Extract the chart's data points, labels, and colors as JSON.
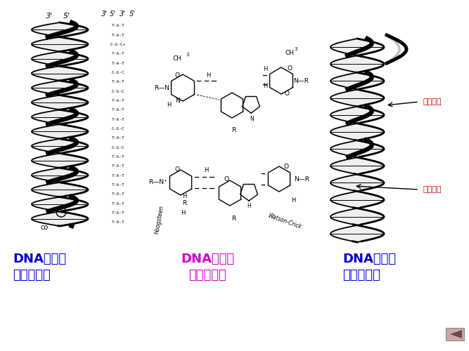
{
  "background_color": "#ffffff",
  "title_left_line1": "DNA分子间",
  "title_left_line2": "的三链结构",
  "title_left_color": "#0000cc",
  "title_center_line1": "DNA三链间",
  "title_center_line2": "的碱基配对",
  "title_center_color": "#cc00cc",
  "title_right_line1": "DNA分子内",
  "title_right_line2": "的三链结构",
  "title_right_color": "#0000cc",
  "label_polypurine": "多聚嘌呤",
  "label_polypyrimidine": "多聚嘧啶",
  "label_color": "#cc0000",
  "nav_button_color": "#c8a0a0",
  "figsize": [
    6.67,
    5.0
  ],
  "dpi": 100
}
